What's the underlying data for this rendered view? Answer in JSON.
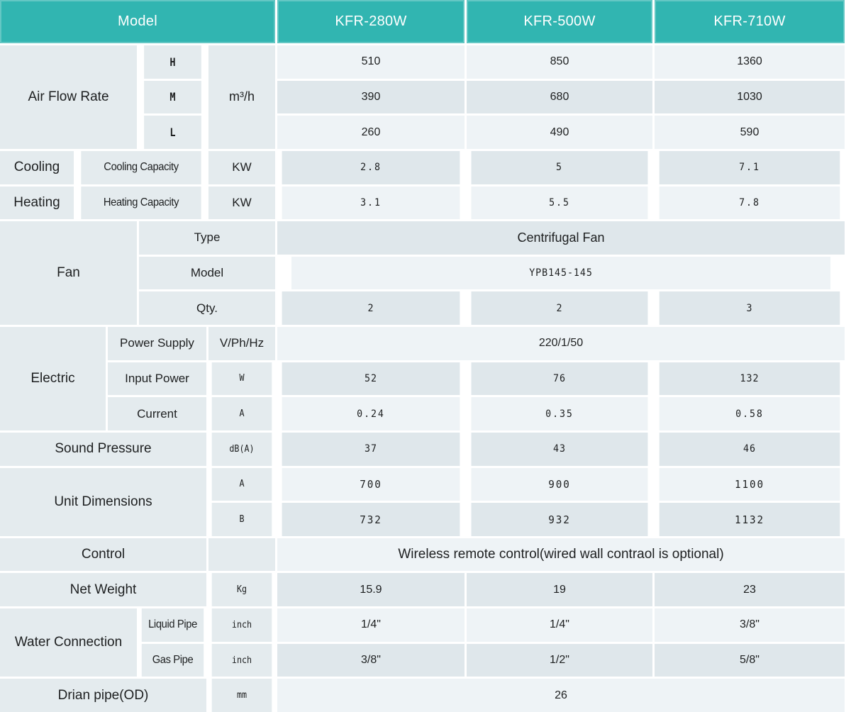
{
  "header": {
    "model_label": "Model",
    "columns": [
      "KFR-280W",
      "KFR-500W",
      "KFR-710W"
    ]
  },
  "air_flow_rate": {
    "label": "Air Flow Rate",
    "unit": "m³/h",
    "rows": [
      {
        "level": "H",
        "values": [
          "510",
          "850",
          "1360"
        ]
      },
      {
        "level": "M",
        "values": [
          "390",
          "680",
          "1030"
        ]
      },
      {
        "level": "L",
        "values": [
          "260",
          "490",
          "590"
        ]
      }
    ]
  },
  "cooling": {
    "label": "Cooling",
    "sub_label": "Cooling Capacity",
    "unit": "KW",
    "values": [
      "2.8",
      "5",
      "7.1"
    ]
  },
  "heating": {
    "label": "Heating",
    "sub_label": "Heating Capacity",
    "unit": "KW",
    "values": [
      "3.1",
      "5.5",
      "7.8"
    ]
  },
  "fan": {
    "label": "Fan",
    "type_label": "Type",
    "type_value": "Centrifugal Fan",
    "model_label": "Model",
    "model_value": "YPB145-145",
    "qty_label": "Qty.",
    "qty_values": [
      "2",
      "2",
      "3"
    ]
  },
  "electric": {
    "label": "Electric",
    "power_supply": {
      "label": "Power Supply",
      "unit": "V/Ph/Hz",
      "value": "220/1/50"
    },
    "input_power": {
      "label": "Input Power",
      "unit": "W",
      "values": [
        "52",
        "76",
        "132"
      ]
    },
    "current": {
      "label": "Current",
      "unit": "A",
      "values": [
        "0.24",
        "0.35",
        "0.58"
      ]
    }
  },
  "sound_pressure": {
    "label": "Sound Pressure",
    "unit": "dB(A)",
    "values": [
      "37",
      "43",
      "46"
    ]
  },
  "unit_dimensions": {
    "label": "Unit Dimensions",
    "rows": [
      {
        "dim": "A",
        "values": [
          "700",
          "900",
          "1100"
        ]
      },
      {
        "dim": "B",
        "values": [
          "732",
          "932",
          "1132"
        ]
      }
    ]
  },
  "control": {
    "label": "Control",
    "value": "Wireless remote control(wired wall contraol is optional)"
  },
  "net_weight": {
    "label": "Net Weight",
    "unit": "Kg",
    "values": [
      "15.9",
      "19",
      "23"
    ]
  },
  "water_connection": {
    "label": "Water Connection",
    "rows": [
      {
        "sub_label": "Liquid Pipe",
        "unit": "inch",
        "values": [
          "1/4\"",
          "1/4\"",
          "3/8\""
        ]
      },
      {
        "sub_label": "Gas Pipe",
        "unit": "inch",
        "values": [
          "3/8\"",
          "1/2\"",
          "5/8\""
        ]
      }
    ]
  },
  "drain_pipe": {
    "label": "Drian pipe(OD)",
    "unit": "mm",
    "value": "26"
  },
  "colors": {
    "header_bg": "#31b5b1",
    "header_text": "#ffffff",
    "row_light": "#eef3f6",
    "row_dark": "#dfe7eb",
    "label_cell_bg": "#e4ebee",
    "grid_line": "#ffffff",
    "body_text": "#1d1f20"
  }
}
